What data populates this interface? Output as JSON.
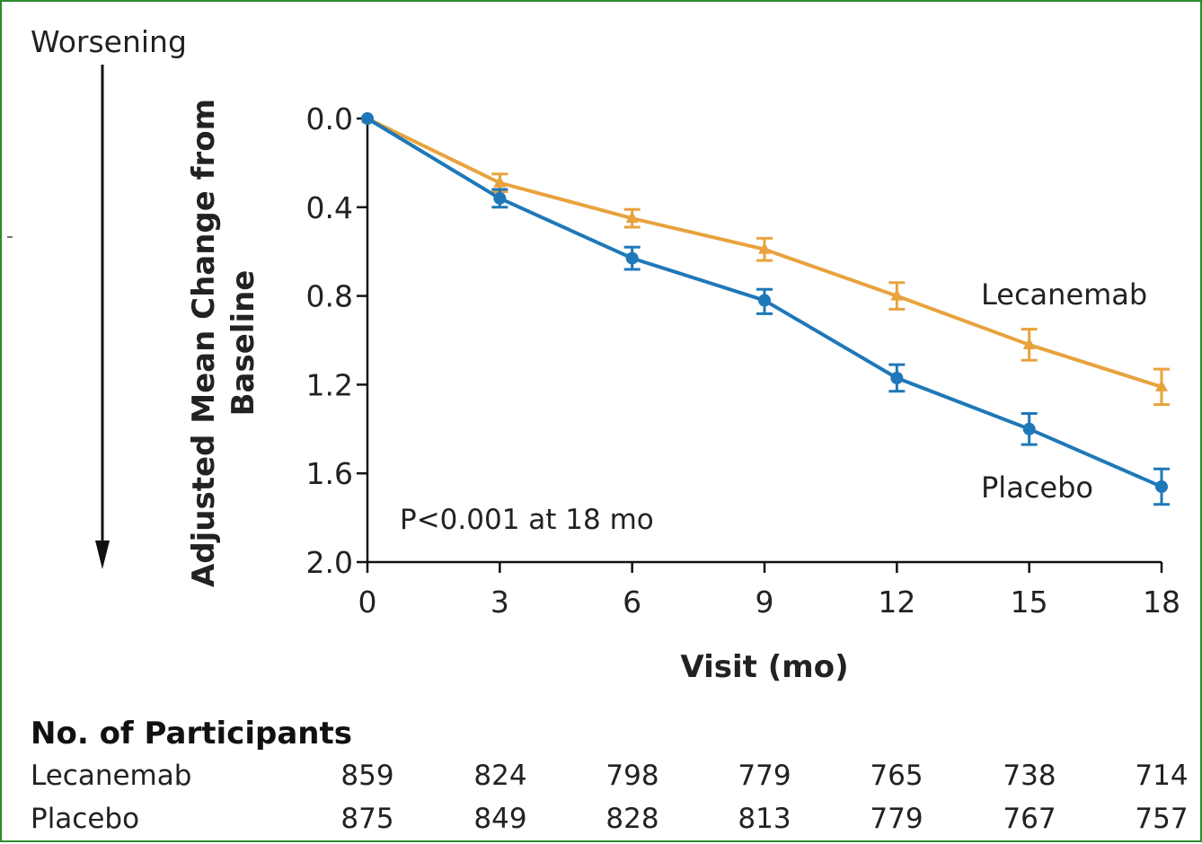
{
  "chart_data": {
    "type": "line",
    "worsening_label": "Worsening",
    "ylabel": [
      "Adjusted Mean Change from",
      "Baseline"
    ],
    "xlabel": "Visit (mo)",
    "x": [
      0,
      3,
      6,
      9,
      12,
      15,
      18
    ],
    "xticks": [
      "0",
      "3",
      "6",
      "9",
      "12",
      "15",
      "18"
    ],
    "yticks": [
      "0.0",
      "0.4",
      "0.8",
      "1.2",
      "1.6",
      "2.0"
    ],
    "ytick_values": [
      0.0,
      0.4,
      0.8,
      1.2,
      1.6,
      2.0
    ],
    "ylim": [
      0.0,
      2.0
    ],
    "y_inverted": true,
    "annotation": "P<0.001 at 18 mo",
    "series": [
      {
        "name": "Lecanemab",
        "color": "#e8a33d",
        "marker": "triangle",
        "values": [
          0.0,
          0.29,
          0.45,
          0.59,
          0.8,
          1.02,
          1.21
        ],
        "ci_low": [
          0.0,
          0.25,
          0.41,
          0.54,
          0.74,
          0.95,
          1.13
        ],
        "ci_high": [
          0.0,
          0.33,
          0.49,
          0.64,
          0.86,
          1.09,
          1.29
        ]
      },
      {
        "name": "Placebo",
        "color": "#1f78b8",
        "marker": "circle",
        "values": [
          0.0,
          0.36,
          0.63,
          0.82,
          1.17,
          1.4,
          1.66
        ],
        "ci_low": [
          0.0,
          0.32,
          0.58,
          0.77,
          1.11,
          1.33,
          1.58
        ],
        "ci_high": [
          0.0,
          0.4,
          0.68,
          0.88,
          1.23,
          1.47,
          1.74
        ]
      }
    ]
  },
  "participants_table": {
    "title": "No. of Participants",
    "rows": [
      {
        "label": "Lecanemab",
        "values": [
          "859",
          "824",
          "798",
          "779",
          "765",
          "738",
          "714"
        ]
      },
      {
        "label": "Placebo",
        "values": [
          "875",
          "849",
          "828",
          "813",
          "779",
          "767",
          "757"
        ]
      }
    ]
  }
}
